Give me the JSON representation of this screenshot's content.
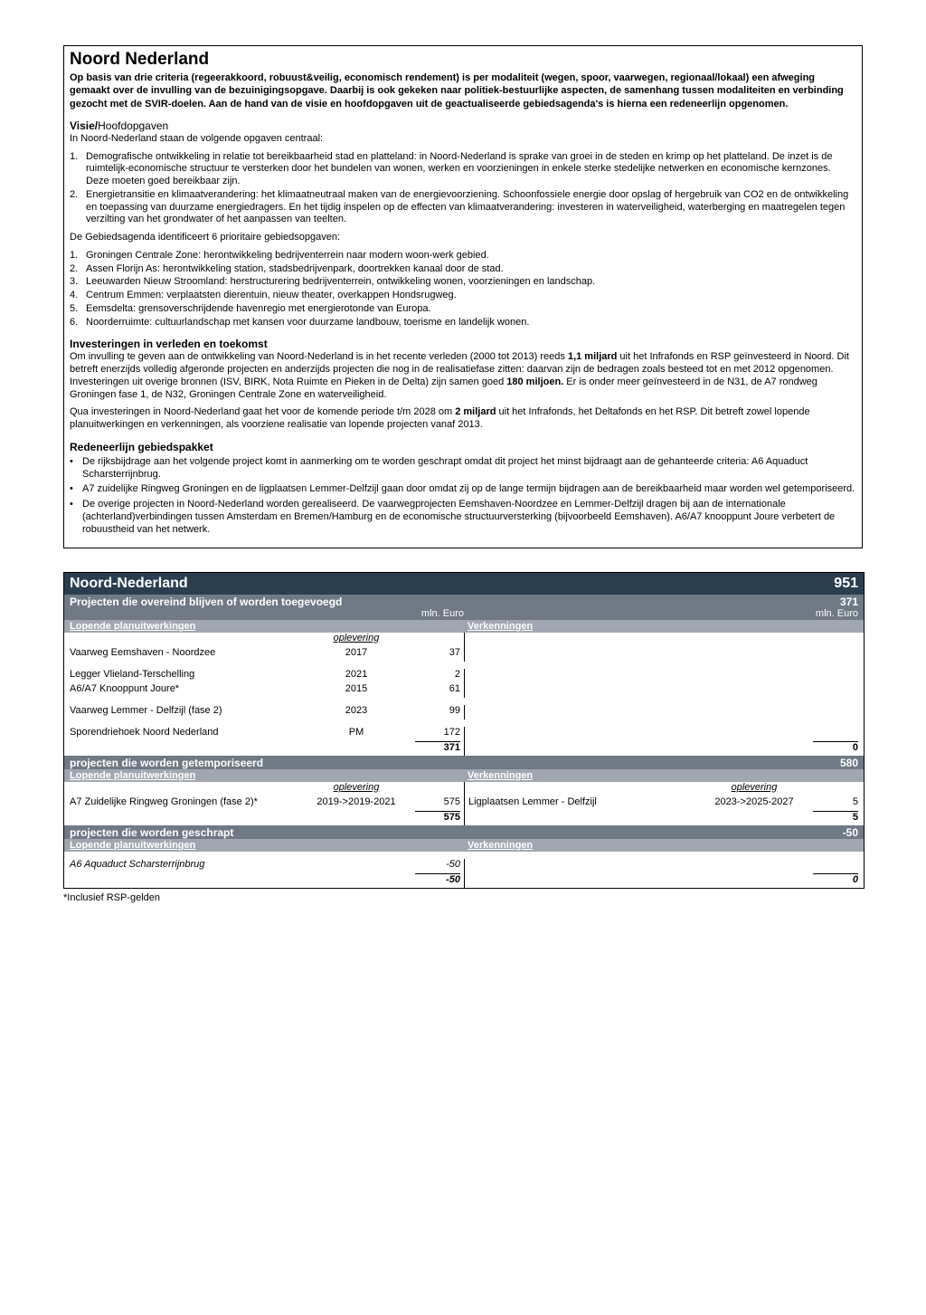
{
  "doc": {
    "title": "Noord Nederland",
    "intro": "Op basis van drie criteria (regeerakkoord, robuust&veilig, economisch rendement) is per modaliteit (wegen, spoor, vaarwegen, regionaal/lokaal) een afweging gemaakt over de invulling van de bezuinigingsopgave. Daarbij is ook gekeken naar politiek-bestuurlijke aspecten, de samenhang tussen modaliteiten en verbinding gezocht met de SVIR-doelen. Aan de hand van de visie en hoofdopgaven uit de geactualiseerde gebiedsagenda's is hierna een redeneerlijn opgenomen.",
    "visie_head": "Visie/",
    "visie_sub": "Hoofdopgaven",
    "visie_lead": "In Noord-Nederland staan de volgende opgaven centraal:",
    "visies": [
      "Demografische ontwikkeling in relatie tot bereikbaarheid stad en platteland: in Noord-Nederland is sprake van groei in de steden en krimp op het platteland. De inzet is de ruimtelijk-economische structuur te versterken door het bundelen van wonen, werken en voorzieningen in enkele sterke stedelijke netwerken en economische kernzones. Deze moeten goed bereikbaar zijn.",
      "Energietransitie en klimaatverandering: het klimaatneutraal maken van de energievoorziening. Schoonfossiele energie door opslag of hergebruik van CO2 en de ontwikkeling en toepassing van duurzame energiedragers. En het tijdig inspelen op de effecten van klimaatverandering: investeren in waterveiligheid, waterberging en maatregelen tegen verzilting van het grondwater of het aanpassen van teelten."
    ],
    "gebieds_lead": "De Gebiedsagenda identificeert 6 prioritaire gebiedsopgaven:",
    "gebieds": [
      "Groningen Centrale Zone: herontwikkeling bedrijventerrein naar modern woon-werk gebied.",
      "Assen Florijn As: herontwikkeling station, stadsbedrijvenpark, doortrekken kanaal door de stad.",
      "Leeuwarden Nieuw Stroomland: herstructurering bedrijventerrein, ontwikkeling wonen, voorzieningen en landschap.",
      "Centrum Emmen: verplaatsten dierentuin, nieuw theater, overkappen Hondsrugweg.",
      "Eemsdelta: grensoverschrijdende havenregio met energierotonde van Europa.",
      "Noorderruimte: cultuurlandschap met kansen voor duurzame landbouw, toerisme en landelijk wonen."
    ],
    "invest_head": "Investeringen in verleden en toekomst",
    "invest_p1a": "Om invulling te geven aan de ontwikkeling van Noord-Nederland is in het recente verleden (2000 tot 2013) reeds ",
    "invest_p1_bold1": "1,1 miljard",
    "invest_p1b": " uit het Infrafonds en RSP geïnvesteerd in Noord. Dit betreft enerzijds volledig afgeronde projecten en anderzijds projecten die nog in de realisatiefase zitten: daarvan zijn de bedragen zoals besteed tot en met 2012 opgenomen. Investeringen uit overige bronnen (ISV, BIRK, Nota Ruimte en Pieken in de Delta) zijn samen goed ",
    "invest_p1_bold2": "180 miljoen.",
    "invest_p1c": " Er is onder meer geïnvesteerd in de N31, de A7 rondweg Groningen fase 1, de N32, Groningen Centrale Zone en waterveiligheid.",
    "invest_p2a": "Qua investeringen in Noord-Nederland gaat het voor de komende periode t/m 2028 om ",
    "invest_p2_bold": "2 miljard",
    "invest_p2b": " uit het Infrafonds, het Deltafonds en het RSP. Dit betreft zowel lopende planuitwerkingen en verkenningen, als voorziene realisatie van lopende projecten vanaf 2013.",
    "redeneer_head": "Redeneerlijn gebiedspakket",
    "redeneer": [
      "De rijksbijdrage aan het volgende project komt in aanmerking om te worden geschrapt omdat dit project het minst bijdraagt aan de gehanteerde criteria: A6 Aquaduct Scharsterrijnbrug.",
      "A7 zuidelijke Ringweg Groningen en de ligplaatsen Lemmer-Delfzijl gaan door omdat zij op de lange termijn bijdragen aan de bereikbaarheid maar worden wel getemporiseerd.",
      "De overige projecten in Noord-Nederland worden gerealiseerd. De vaarwegprojecten Eemshaven-Noordzee en Lemmer-Delfzijl dragen bij aan de internationale (achterland)verbindingen tussen Amsterdam en Bremen/Hamburg en de economische structuurversterking (bijvoorbeeld Eemshaven). A6/A7 knooppunt Joure verbetert de robuustheid van het netwerk."
    ]
  },
  "table": {
    "region": "Noord-Nederland",
    "grand_total": "951",
    "kept_head": "Projecten die overeind blijven of worden toegevoegd",
    "kept_total": "371",
    "unit": "mln. Euro",
    "col_lopende": "Lopende planuitwerkingen",
    "col_verk": "Verkenningen",
    "col_opl": "oplevering",
    "kept_rows": [
      {
        "name": "Vaarweg Eemshaven - Noordzee",
        "opl": "2017",
        "amt": "37"
      },
      {
        "name": "Legger Vlieland-Terschelling",
        "opl": "2021",
        "amt": "2"
      },
      {
        "name": "A6/A7 Knooppunt Joure*",
        "opl": "2015",
        "amt": "61"
      },
      {
        "name": "Vaarweg Lemmer - Delfzijl (fase 2)",
        "opl": "2023",
        "amt": "99"
      },
      {
        "name": "Sporendriehoek Noord Nederland",
        "opl": "PM",
        "amt": "172"
      }
    ],
    "kept_left_total": "371",
    "kept_right_total": "0",
    "temp_head": "projecten die worden getemporiseerd",
    "temp_total": "580",
    "temp_left": [
      {
        "name": "A7 Zuidelijke Ringweg Groningen (fase 2)*",
        "opl": "2019->2019-2021",
        "amt": "575"
      }
    ],
    "temp_left_total": "575",
    "temp_right": [
      {
        "name": "Ligplaatsen Lemmer - Delfzijl",
        "opl": "2023->2025-2027",
        "amt": "5"
      }
    ],
    "temp_right_total": "5",
    "scrap_head": "projecten die worden geschrapt",
    "scrap_total": "-50",
    "scrap_left": [
      {
        "name": "A6 Aquaduct Scharsterrijnbrug",
        "opl": "",
        "amt": "-50"
      }
    ],
    "scrap_left_total": "-50",
    "scrap_right_total": "0",
    "footnote": "*Inclusief RSP-gelden"
  }
}
